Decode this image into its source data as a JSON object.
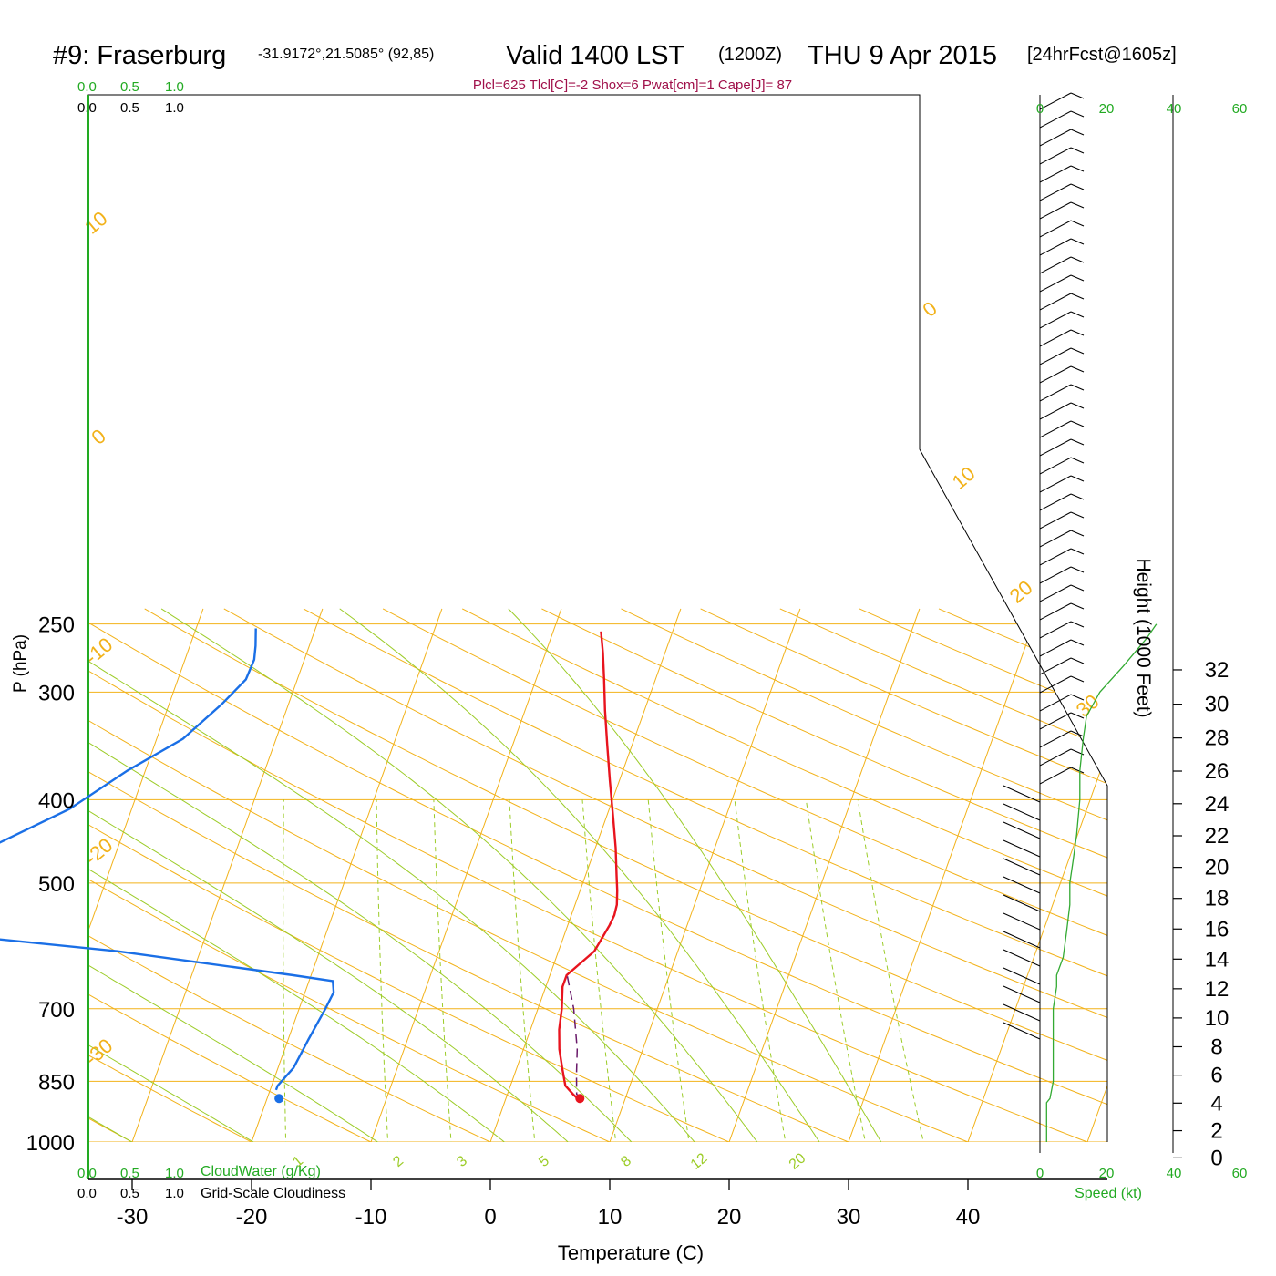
{
  "header": {
    "station": "#9: Fraserburg",
    "coords": "-31.9172°,21.5085° (92,85)",
    "valid": "Valid 1400 LST",
    "zulu": "(1200Z)",
    "date": "THU 9 Apr 2015",
    "forecast": "[24hrFcst@1605z]"
  },
  "indices": "Plcl=625 Tlcl[C]=-2 Shox=6 Pwat[cm]=1 Cape[J]= 87",
  "top_scales": {
    "green": [
      "0.0",
      "0.5",
      "1.0"
    ],
    "black": [
      "0.0",
      "0.5",
      "1.0"
    ]
  },
  "bottom_scales": {
    "green": [
      "0.0",
      "0.5",
      "1.0"
    ],
    "black": [
      "0.0",
      "0.5",
      "1.0"
    ],
    "cloudwater_label": "CloudWater (g/Kg)",
    "cloudiness_label": "Grid-Scale Cloudiness"
  },
  "speed_axis": {
    "label": "Speed (kt)",
    "ticks": [
      "0",
      "20",
      "40",
      "60"
    ]
  },
  "colors": {
    "temperature": "#e8141e",
    "dewpoint": "#1a6fe6",
    "parcel": "#6a1a6a",
    "isotherm": "#f2b21a",
    "dry_adiabat": "#f2b21a",
    "moist_adiabat": "#9ccc28",
    "mixing_ratio": "#9ccc28",
    "title_indices": "#a0104a",
    "green_text": "#22aa22",
    "speed": "#33aa33",
    "axis": "#000000"
  },
  "chart_data": {
    "type": "line",
    "xlabel": "Temperature (C)",
    "ylabel": "P (hPa)",
    "y2label": "Height (1000 Feet)",
    "x_ticks": [
      -30,
      -20,
      -10,
      0,
      10,
      20,
      30,
      40
    ],
    "pressure_ticks": [
      250,
      300,
      400,
      500,
      700,
      850,
      1000
    ],
    "height_ticks": [
      0,
      2,
      4,
      6,
      8,
      10,
      12,
      14,
      16,
      18,
      20,
      22,
      24,
      26,
      28,
      30,
      32
    ],
    "isotherm_labels": [
      "10",
      "0",
      "-10",
      "-20",
      "-30",
      "0",
      "10",
      "20",
      "30"
    ],
    "moist_labels": [
      "1",
      "2",
      "3",
      "5",
      "8",
      "12",
      "20"
    ],
    "series": [
      {
        "name": "Temperature",
        "points": [
          [
            -6.0,
            255
          ],
          [
            -5.2,
            270
          ],
          [
            -4.3,
            290
          ],
          [
            -3.3,
            315
          ],
          [
            -2.1,
            345
          ],
          [
            -0.8,
            380
          ],
          [
            0.6,
            420
          ],
          [
            1.7,
            455
          ],
          [
            2.6,
            490
          ],
          [
            3.1,
            510
          ],
          [
            3.5,
            530
          ],
          [
            3.6,
            545
          ],
          [
            3.5,
            560
          ],
          [
            3.0,
            600
          ],
          [
            1.4,
            640
          ],
          [
            1.4,
            660
          ],
          [
            2.0,
            700
          ],
          [
            2.4,
            740
          ],
          [
            3.0,
            780
          ],
          [
            3.8,
            820
          ],
          [
            4.6,
            860
          ],
          [
            5.5,
            880
          ],
          [
            6.0,
            890
          ]
        ]
      },
      {
        "name": "Dewpoint",
        "points": [
          [
            -35.0,
            253
          ],
          [
            -34.5,
            265
          ],
          [
            -34.2,
            275
          ],
          [
            -34.3,
            290
          ],
          [
            -35.6,
            310
          ],
          [
            -37.8,
            340
          ],
          [
            -41.5,
            370
          ],
          [
            -45.2,
            410
          ],
          [
            -50.2,
            450
          ],
          [
            -54.0,
            490
          ],
          [
            -55.0,
            510
          ],
          [
            -55.0,
            530
          ],
          [
            -54.0,
            550
          ],
          [
            -53.0,
            560
          ],
          [
            -53.5,
            570
          ],
          [
            -37.0,
            600
          ],
          [
            -21.5,
            640
          ],
          [
            -18.0,
            650
          ],
          [
            -17.6,
            670
          ],
          [
            -17.8,
            700
          ],
          [
            -18.3,
            760
          ],
          [
            -18.7,
            820
          ],
          [
            -19.5,
            860
          ],
          [
            -19.5,
            870
          ]
        ]
      },
      {
        "name": "Parcel",
        "points": [
          [
            1.5,
            642
          ],
          [
            3.0,
            700
          ],
          [
            4.5,
            780
          ],
          [
            5.2,
            835
          ],
          [
            5.8,
            880
          ],
          [
            6.3,
            888
          ]
        ]
      }
    ],
    "surface_points": [
      {
        "name": "surface temperature",
        "t": 6.2,
        "p": 890
      },
      {
        "name": "surface dewpoint",
        "t": -19.0,
        "p": 890
      }
    ],
    "wind_profile": [
      {
        "p": 1000,
        "speed": 2
      },
      {
        "p": 950,
        "speed": 2
      },
      {
        "p": 900,
        "speed": 2
      },
      {
        "p": 890,
        "speed": 3
      },
      {
        "p": 850,
        "speed": 4
      },
      {
        "p": 800,
        "speed": 4
      },
      {
        "p": 750,
        "speed": 4
      },
      {
        "p": 700,
        "speed": 4
      },
      {
        "p": 660,
        "speed": 5
      },
      {
        "p": 640,
        "speed": 5
      },
      {
        "p": 610,
        "speed": 7
      },
      {
        "p": 570,
        "speed": 8
      },
      {
        "p": 530,
        "speed": 9
      },
      {
        "p": 500,
        "speed": 9
      },
      {
        "p": 470,
        "speed": 10
      },
      {
        "p": 440,
        "speed": 11
      },
      {
        "p": 400,
        "speed": 12
      },
      {
        "p": 370,
        "speed": 12
      },
      {
        "p": 340,
        "speed": 13
      },
      {
        "p": 320,
        "speed": 14
      },
      {
        "p": 300,
        "speed": 18
      },
      {
        "p": 280,
        "speed": 25
      },
      {
        "p": 260,
        "speed": 32
      },
      {
        "p": 250,
        "speed": 35
      }
    ]
  }
}
